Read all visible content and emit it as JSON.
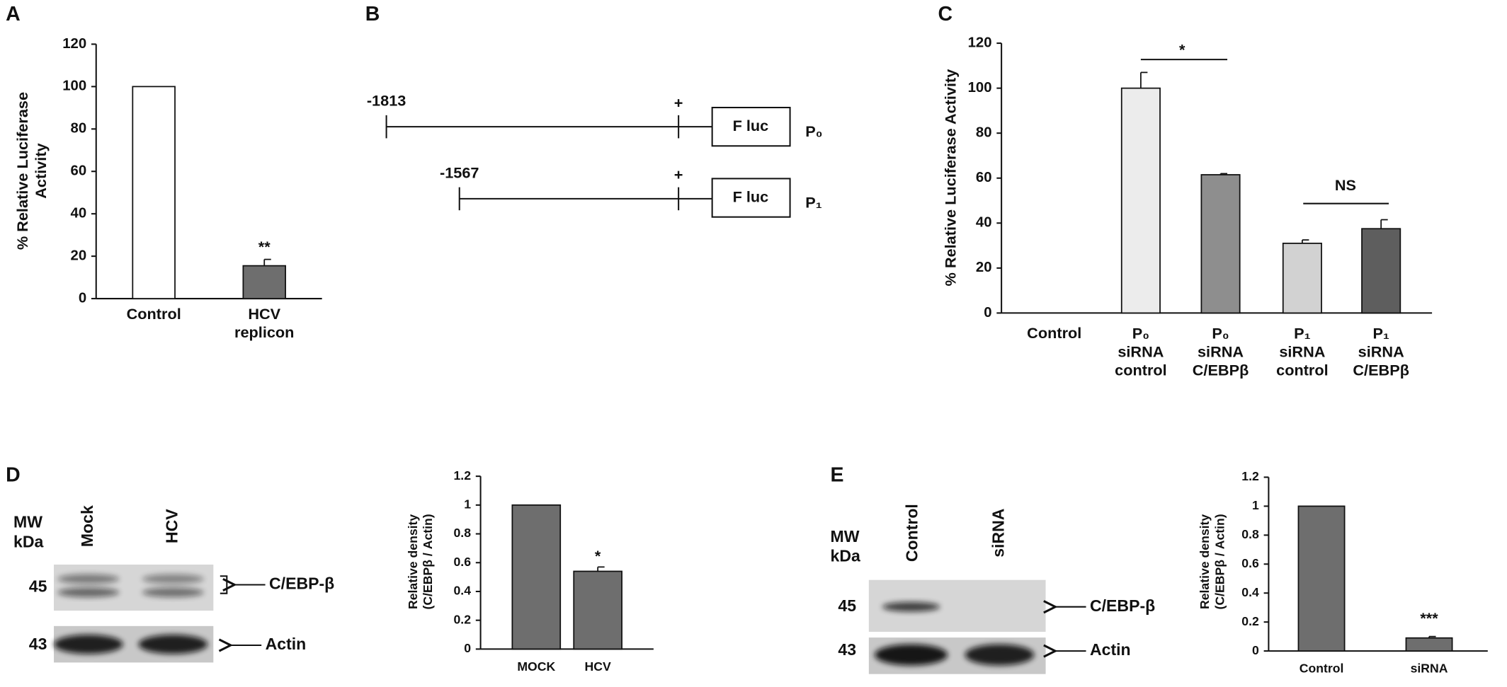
{
  "panel_labels": [
    "A",
    "B",
    "C",
    "D",
    "E"
  ],
  "chart_data": [
    {
      "type": "bar",
      "categories": [
        "Control",
        "HCV\nreplicon"
      ],
      "values": [
        100,
        15.5
      ],
      "errors": [
        0,
        3
      ],
      "colors": [
        "#ffffff",
        "#6e6e6e"
      ],
      "ylim": [
        0,
        120
      ],
      "yticks": [
        0,
        20,
        40,
        60,
        80,
        100,
        120
      ],
      "ylabel": "% Relative Luciferase\nActivity",
      "annotations": [
        "**"
      ]
    },
    {
      "type": "bar",
      "categories": [
        "Control",
        "P₀\nsiRNA\ncontrol",
        "P₀\nsiRNA\nC/EBPβ",
        "P₁\nsiRNA\ncontrol",
        "P₁\nsiRNA\nC/EBPβ"
      ],
      "values": [
        null,
        100,
        61.5,
        31,
        37.5
      ],
      "errors": [
        null,
        7,
        0.5,
        1.5,
        4
      ],
      "colors": [
        null,
        "#ececec",
        "#8e8e8e",
        "#d2d2d2",
        "#5e5e5e"
      ],
      "ylim": [
        0,
        120
      ],
      "yticks": [
        0,
        20,
        40,
        60,
        80,
        100,
        120
      ],
      "ylabel": "% Relative Luciferase Activity",
      "annotations": [
        "*",
        "NS"
      ]
    },
    {
      "type": "bar",
      "categories": [
        "MOCK",
        "HCV"
      ],
      "values": [
        1,
        0.54
      ],
      "errors": [
        0,
        0.03
      ],
      "colors": [
        "#6e6e6e",
        "#6e6e6e"
      ],
      "ylim": [
        0,
        1.2
      ],
      "yticks": [
        0,
        0.2,
        0.4,
        0.6,
        0.8,
        1,
        1.2
      ],
      "ylabel": "Relative density\n(C/EBPβ / Actin)",
      "annotations": [
        "*"
      ]
    },
    {
      "type": "bar",
      "categories": [
        "Control",
        "siRNA"
      ],
      "values": [
        1,
        0.09
      ],
      "errors": [
        0,
        0.01
      ],
      "colors": [
        "#6e6e6e",
        "#6e6e6e"
      ],
      "ylim": [
        0,
        1.2
      ],
      "yticks": [
        0,
        0.2,
        0.4,
        0.6,
        0.8,
        1,
        1.2
      ],
      "ylabel": "Relative density\n(C/EBPβ / Actin)",
      "annotations": [
        "***"
      ]
    }
  ],
  "diagram": {
    "constructs": [
      {
        "start": "-1813",
        "tss": "+",
        "reporter": "F luc",
        "name": "P₀"
      },
      {
        "start": "-1567",
        "tss": "+",
        "reporter": "F luc",
        "name": "P₁"
      }
    ]
  },
  "blots": [
    {
      "mw_label": "MW\nkDa",
      "lanes": [
        "Mock",
        "HCV"
      ],
      "markers": [
        "45",
        "43"
      ],
      "bands": [
        "C/EBP-β",
        "Actin"
      ]
    },
    {
      "mw_label": "MW\nkDa",
      "lanes": [
        "Control",
        "siRNA"
      ],
      "markers": [
        "45",
        "43"
      ],
      "bands": [
        "C/EBP-β",
        "Actin"
      ]
    }
  ]
}
